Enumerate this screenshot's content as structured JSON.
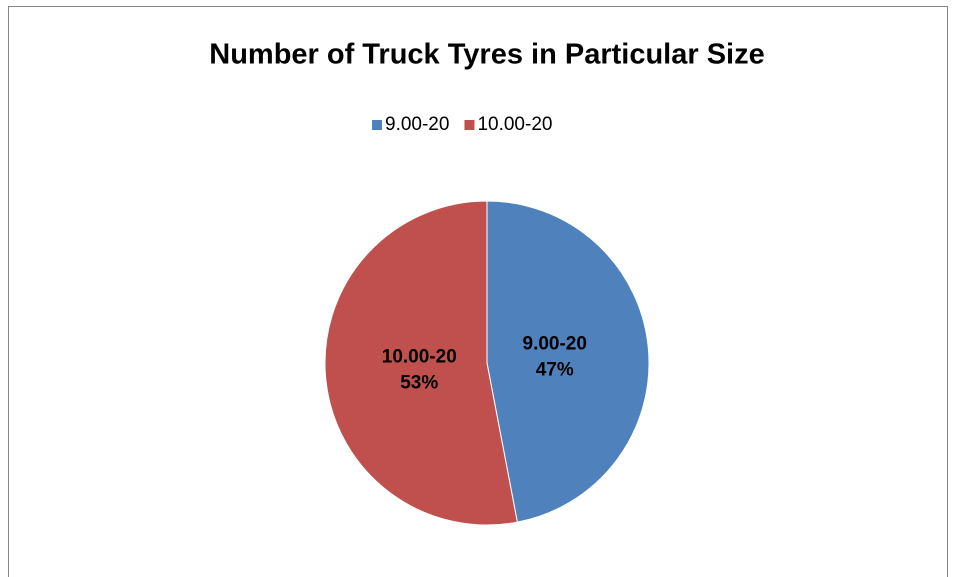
{
  "chart_data": {
    "type": "pie",
    "title": "Number of Truck Tyres in Particular Size",
    "categories": [
      "9.00-20",
      "10.00-20"
    ],
    "values": [
      47,
      53
    ],
    "value_labels": [
      "47%",
      "53%"
    ],
    "colors": [
      "#4f81bd",
      "#c0504d"
    ],
    "legend": "top"
  }
}
